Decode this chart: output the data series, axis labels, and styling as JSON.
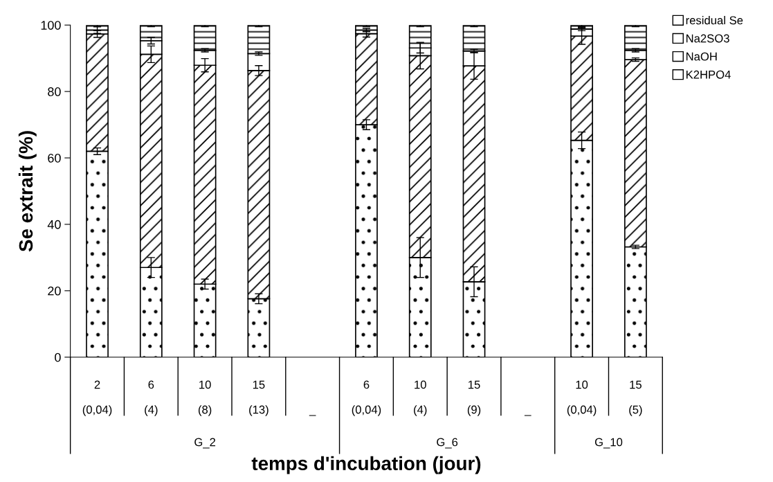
{
  "chart_data": {
    "type": "bar",
    "stacked": true,
    "ylabel": "Se extrait (%)",
    "xlabel": "temps d'incubation (jour)",
    "categories": [
      "2\n(0,04)",
      "6\n(4)",
      "10\n(8)",
      "15\n(13)",
      "\n_",
      "6\n(0,04)",
      "10\n(4)",
      "15\n(9)",
      "\n_",
      "10\n(0,04)",
      "15\n(5)"
    ],
    "series": [
      {
        "name": "K2HPO4",
        "color": "#ffffff",
        "values": [
          62,
          27,
          22,
          17.6,
          null,
          70,
          30,
          22.7,
          null,
          65.3,
          33.2
        ],
        "errors": [
          1,
          3,
          1.5,
          1.5,
          null,
          1.5,
          6,
          4.5,
          null,
          2.5,
          0.5
        ]
      },
      {
        "name": "NaOH",
        "color": "#ffffff",
        "values": [
          35.3,
          64.2,
          65.9,
          68.7,
          null,
          27.4,
          60.8,
          65,
          null,
          31.4,
          56.4
        ],
        "errors": [
          1,
          2.5,
          2,
          1.5,
          null,
          1,
          4,
          4,
          null,
          2.5,
          0.5
        ]
      },
      {
        "name": "Na2SO3",
        "color": "#ffffff",
        "values": [
          1.2,
          4.1,
          4.5,
          5.1,
          null,
          1.1,
          2.3,
          4.5,
          null,
          2.1,
          2.8
        ],
        "errors": [
          1,
          1,
          0.5,
          0.5,
          null,
          0.5,
          1.5,
          0.5,
          null,
          0.5,
          0.5
        ]
      },
      {
        "name": "residual Se",
        "color": "#ffffff",
        "values": [
          1.5,
          4.7,
          7.6,
          8.6,
          null,
          1.5,
          6.9,
          7.8,
          null,
          1.2,
          7.6
        ],
        "errors": [
          0.5,
          0.5,
          0.5,
          0.5,
          null,
          0.5,
          0.5,
          0.5,
          null,
          0.5,
          0.5
        ]
      }
    ],
    "annotations": [
      "G_2",
      "G_6",
      "G_10"
    ],
    "ylim": [
      0,
      100
    ],
    "yticks": [
      0,
      20,
      40,
      60,
      80,
      100
    ],
    "grid": false,
    "legend": "top right"
  }
}
